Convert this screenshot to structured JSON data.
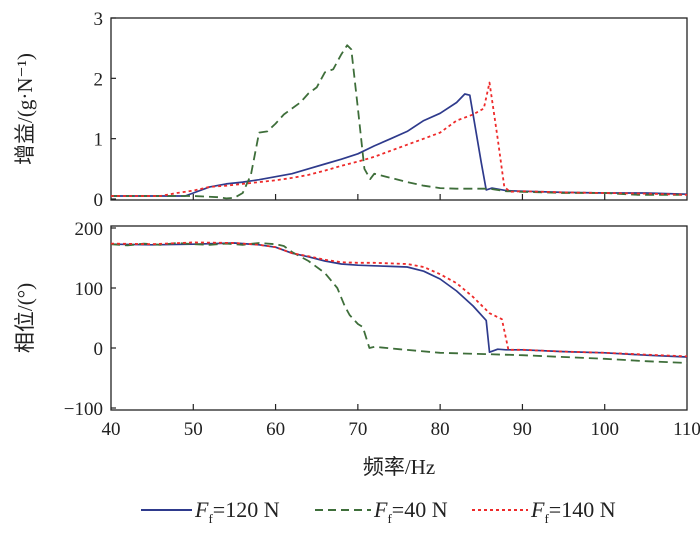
{
  "chart_data": [
    {
      "type": "line",
      "panel": "gain",
      "ylabel": "增益/(g·N⁻¹)",
      "ylim": [
        0,
        3
      ],
      "yticks": [
        "0",
        "1",
        "2",
        "3"
      ],
      "xlim": [
        40,
        110
      ],
      "series": [
        {
          "name": "F_f=120 N",
          "color": "#2e3a8c",
          "style": "solid",
          "x": [
            40,
            45,
            49,
            50,
            52,
            54,
            56,
            58,
            60,
            62,
            64,
            66,
            68,
            70,
            72,
            74,
            76,
            78,
            80,
            82,
            83,
            83.6,
            85,
            85.6,
            86.3,
            88,
            90,
            95,
            100,
            105,
            110
          ],
          "y": [
            0.05,
            0.05,
            0.05,
            0.1,
            0.2,
            0.25,
            0.28,
            0.32,
            0.37,
            0.42,
            0.5,
            0.58,
            0.66,
            0.75,
            0.88,
            1.0,
            1.12,
            1.3,
            1.42,
            1.6,
            1.74,
            1.72,
            0.6,
            0.15,
            0.18,
            0.14,
            0.13,
            0.11,
            0.1,
            0.1,
            0.08
          ]
        },
        {
          "name": "F_f=40 N",
          "color": "#3e6e3a",
          "style": "dashed",
          "x": [
            40,
            50,
            53,
            54,
            55,
            56,
            57,
            58,
            59,
            60,
            61,
            62,
            63,
            64,
            65,
            66,
            67,
            68,
            68.7,
            69.2,
            70,
            70.8,
            71.5,
            72,
            74,
            76,
            78,
            80,
            82,
            84,
            86,
            88,
            90,
            95,
            100,
            104,
            110
          ],
          "y": [
            0.05,
            0.05,
            0.03,
            0.01,
            0.02,
            0.1,
            0.4,
            1.1,
            1.12,
            1.25,
            1.4,
            1.5,
            1.6,
            1.75,
            1.85,
            2.1,
            2.15,
            2.4,
            2.55,
            2.48,
            1.5,
            0.5,
            0.33,
            0.42,
            0.35,
            0.28,
            0.22,
            0.18,
            0.17,
            0.17,
            0.17,
            0.13,
            0.12,
            0.1,
            0.1,
            0.07,
            0.07
          ]
        },
        {
          "name": "F_f=140 N",
          "color": "#ee2a2a",
          "style": "dotted",
          "x": [
            40,
            46,
            48,
            50,
            52,
            54,
            56,
            58,
            60,
            62,
            64,
            66,
            68,
            70,
            72,
            74,
            76,
            78,
            80,
            82,
            84,
            85.3,
            86,
            87,
            87.8,
            88.5,
            90,
            95,
            100,
            105,
            110
          ],
          "y": [
            0.05,
            0.05,
            0.1,
            0.14,
            0.2,
            0.22,
            0.25,
            0.28,
            0.31,
            0.35,
            0.4,
            0.47,
            0.55,
            0.62,
            0.7,
            0.8,
            0.9,
            1.0,
            1.1,
            1.3,
            1.4,
            1.5,
            1.93,
            1.0,
            0.2,
            0.12,
            0.13,
            0.11,
            0.1,
            0.09,
            0.07
          ]
        }
      ]
    },
    {
      "type": "line",
      "panel": "phase",
      "ylabel": "相位/(°)",
      "ylim": [
        -100,
        200
      ],
      "yticks": [
        "−100",
        "0",
        "100",
        "200"
      ],
      "xlim": [
        40,
        110
      ],
      "xticks": [
        "40",
        "50",
        "60",
        "70",
        "80",
        "90",
        "100",
        "110"
      ],
      "xlabel": "频率/Hz",
      "series": [
        {
          "name": "F_f=120 N",
          "color": "#2e3a8c",
          "style": "solid",
          "x": [
            40,
            45,
            50,
            55,
            58,
            60,
            62,
            64,
            66,
            68,
            70,
            72,
            74,
            76,
            78,
            80,
            82,
            84,
            85.6,
            86,
            87,
            88,
            90,
            95,
            100,
            105,
            110
          ],
          "y": [
            173,
            172,
            173,
            175,
            172,
            168,
            158,
            152,
            145,
            140,
            138,
            137,
            136,
            135,
            128,
            115,
            95,
            70,
            46,
            -7,
            -2,
            -3,
            -3,
            -6,
            -8,
            -12,
            -15
          ]
        },
        {
          "name": "F_f=40 N",
          "color": "#3e6e3a",
          "style": "dashed",
          "x": [
            40,
            42,
            44,
            46,
            48,
            50,
            52,
            54,
            56,
            58,
            60,
            61,
            62,
            64,
            66,
            67.5,
            68.4,
            69,
            70,
            70.6,
            71.4,
            72,
            75,
            80,
            85,
            90,
            95,
            100,
            105,
            110
          ],
          "y": [
            173,
            171,
            174,
            172,
            175,
            173,
            172,
            174,
            172,
            175,
            173,
            170,
            160,
            145,
            125,
            100,
            70,
            55,
            40,
            35,
            0,
            2,
            -2,
            -8,
            -10,
            -12,
            -15,
            -18,
            -22,
            -25
          ]
        },
        {
          "name": "F_f=140 N",
          "color": "#ee2a2a",
          "style": "dotted",
          "x": [
            40,
            45,
            50,
            55,
            58,
            60,
            62,
            64,
            66,
            68,
            70,
            72,
            74,
            76,
            78,
            80,
            82,
            84,
            86,
            87.5,
            88.3,
            90,
            95,
            100,
            105,
            110
          ],
          "y": [
            174,
            173,
            176,
            175,
            172,
            168,
            158,
            153,
            147,
            143,
            142,
            142,
            141,
            140,
            135,
            123,
            108,
            85,
            58,
            48,
            -3,
            -3,
            -6,
            -8,
            -11,
            -14
          ]
        }
      ]
    }
  ],
  "legend": [
    {
      "label_main": "F",
      "label_sub": "f",
      "label_rest": "=120 N"
    },
    {
      "label_main": "F",
      "label_sub": "f",
      "label_rest": "=40 N"
    },
    {
      "label_main": "F",
      "label_sub": "f",
      "label_rest": "=140 N"
    }
  ]
}
